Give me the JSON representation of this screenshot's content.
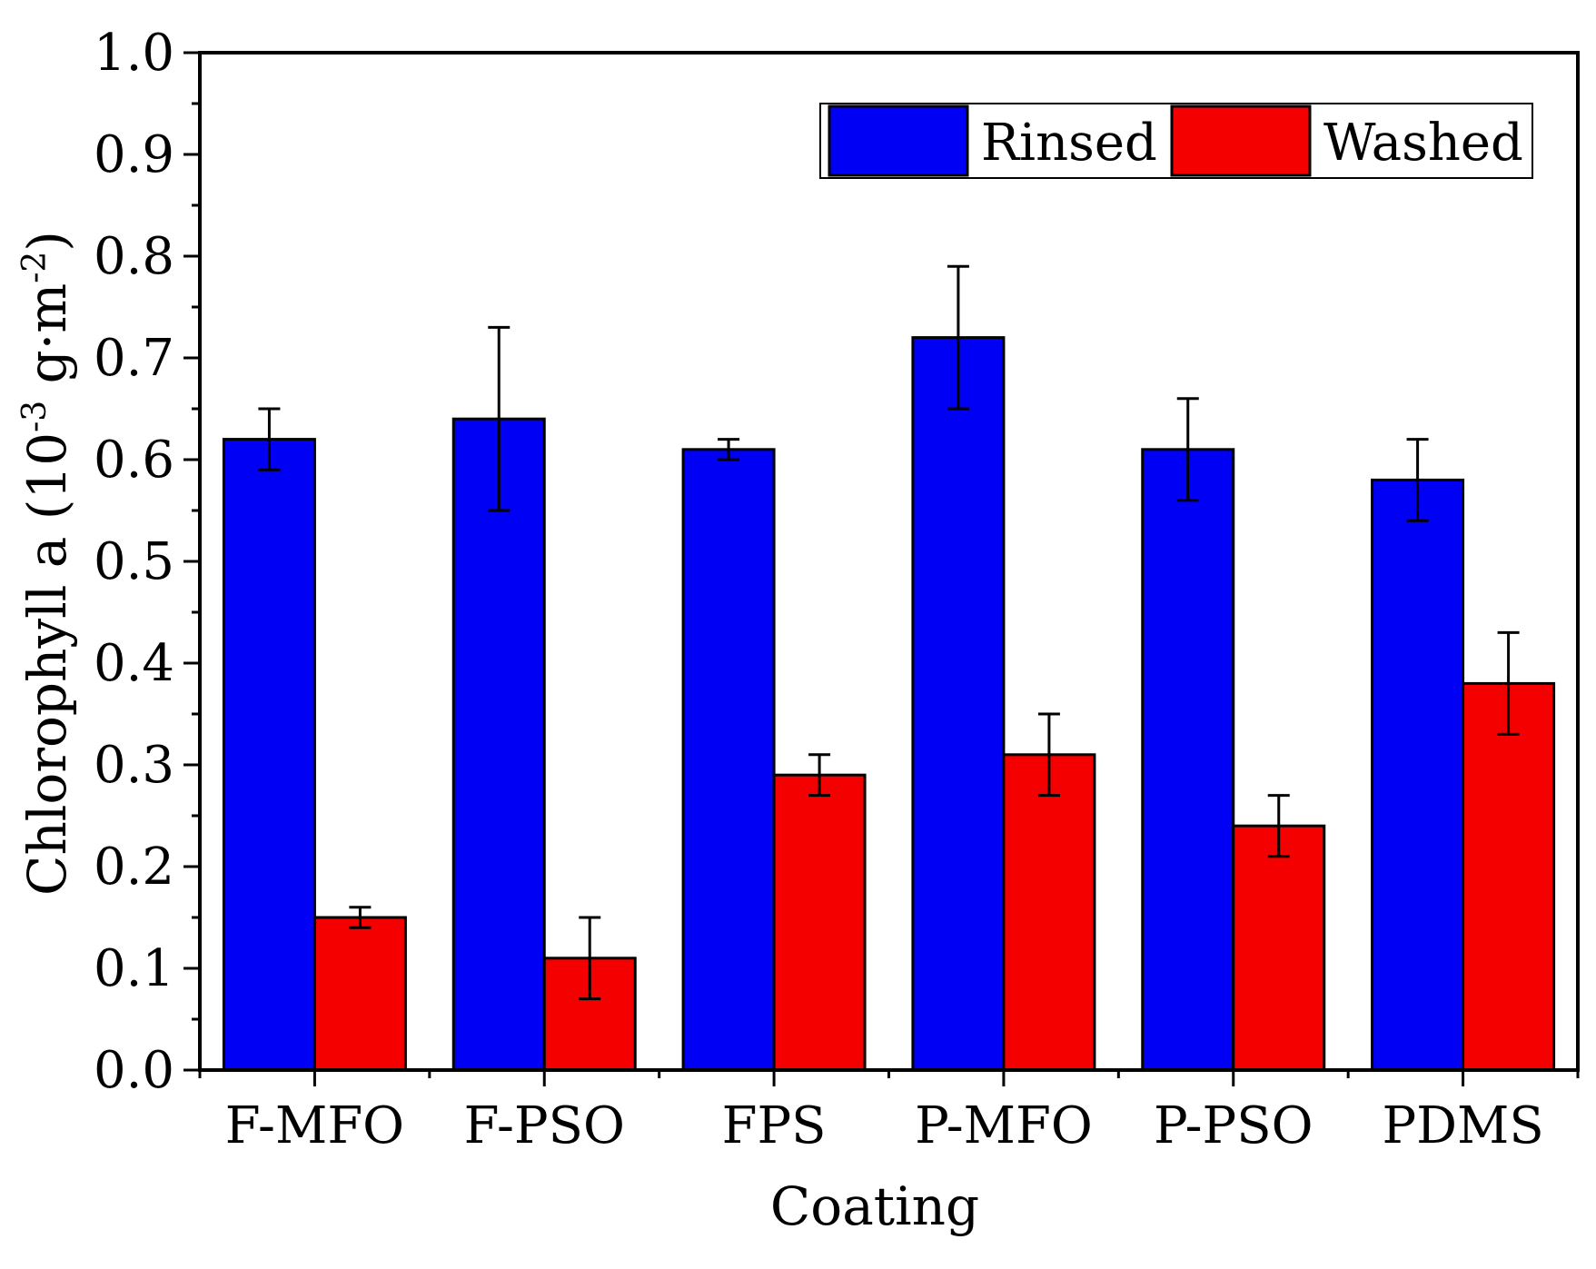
{
  "chart_data": {
    "type": "bar",
    "title": "",
    "xlabel": "Coating",
    "ylabel": {
      "prefix": "Chlorophyll a (10",
      "exp1": "-3",
      "middle": " g·m",
      "exp2": "-2",
      "suffix": ")"
    },
    "ylim": [
      0.0,
      1.0
    ],
    "yticks": [
      "0.0",
      "0.1",
      "0.2",
      "0.3",
      "0.4",
      "0.5",
      "0.6",
      "0.7",
      "0.8",
      "0.9",
      "1.0"
    ],
    "categories": [
      "F-MFO",
      "F-PSO",
      "FPS",
      "P-MFO",
      "P-PSO",
      "PDMS"
    ],
    "series": [
      {
        "name": "Rinsed",
        "color": "#0000f5",
        "values": [
          0.62,
          0.64,
          0.61,
          0.72,
          0.61,
          0.58
        ],
        "errors": [
          0.03,
          0.09,
          0.01,
          0.07,
          0.05,
          0.04
        ]
      },
      {
        "name": "Washed",
        "color": "#f50000",
        "values": [
          0.15,
          0.11,
          0.29,
          0.31,
          0.24,
          0.38
        ],
        "errors": [
          0.01,
          0.04,
          0.02,
          0.04,
          0.03,
          0.05
        ]
      }
    ],
    "legend": {
      "position": "top-right",
      "entries": [
        "Rinsed",
        "Washed"
      ]
    },
    "grid": false
  }
}
